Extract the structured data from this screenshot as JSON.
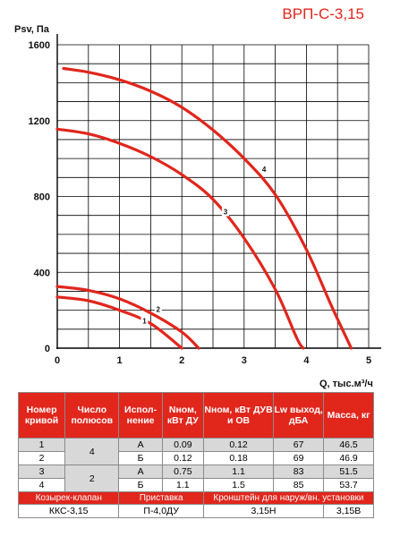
{
  "title": "ВРП-С-3,15",
  "chart_data": {
    "type": "line",
    "ylabel": "Psv, Па",
    "xlabel": "Q, тыс.м³/ч",
    "xlim": [
      0,
      5
    ],
    "ylim": [
      0,
      1600
    ],
    "x_ticks": [
      "0",
      "1",
      "2",
      "3",
      "4",
      "5"
    ],
    "y_ticks": [
      "0",
      "400",
      "800",
      "1200",
      "1600"
    ],
    "grid": true,
    "series": [
      {
        "name": "1",
        "points": [
          [
            0,
            270
          ],
          [
            0.5,
            250
          ],
          [
            1.0,
            200
          ],
          [
            1.5,
            130
          ],
          [
            2.0,
            0
          ]
        ],
        "label_at": [
          1.4,
          145
        ]
      },
      {
        "name": "2",
        "points": [
          [
            0,
            325
          ],
          [
            0.5,
            305
          ],
          [
            1.0,
            260
          ],
          [
            1.5,
            185
          ],
          [
            2.0,
            85
          ],
          [
            2.27,
            0
          ]
        ],
        "label_at": [
          1.62,
          205
        ]
      },
      {
        "name": "3",
        "points": [
          [
            0,
            1155
          ],
          [
            0.5,
            1130
          ],
          [
            1.0,
            1080
          ],
          [
            1.5,
            1010
          ],
          [
            2.0,
            915
          ],
          [
            2.5,
            785
          ],
          [
            3.0,
            580
          ],
          [
            3.5,
            310
          ],
          [
            3.85,
            50
          ],
          [
            3.95,
            0
          ]
        ],
        "label_at": [
          2.7,
          720
        ]
      },
      {
        "name": "4",
        "points": [
          [
            0.1,
            1475
          ],
          [
            0.5,
            1455
          ],
          [
            1.0,
            1415
          ],
          [
            1.5,
            1355
          ],
          [
            2.0,
            1270
          ],
          [
            2.5,
            1150
          ],
          [
            3.0,
            1000
          ],
          [
            3.5,
            810
          ],
          [
            4.0,
            520
          ],
          [
            4.4,
            225
          ],
          [
            4.72,
            0
          ]
        ],
        "label_at": [
          3.32,
          945
        ]
      }
    ],
    "color": "#e1261c"
  },
  "table": {
    "headers": [
      "Номер кривой",
      "Число полюсов",
      "Испол-нение",
      "Nном, кВт ДУ",
      "Nном, кВт ДУВ и ОВ",
      "Lw выход, дБА",
      "Масса, кг"
    ],
    "rows": [
      {
        "curve": "1",
        "poles": "4",
        "version": "А",
        "n_du": "0.09",
        "n_duv": "0.12",
        "lw": "67",
        "mass": "46.5"
      },
      {
        "curve": "2",
        "poles": "",
        "version": "Б",
        "n_du": "0.12",
        "n_duv": "0.18",
        "lw": "69",
        "mass": "46.9"
      },
      {
        "curve": "3",
        "poles": "2",
        "version": "А",
        "n_du": "0.75",
        "n_duv": "1.1",
        "lw": "83",
        "mass": "51.5"
      },
      {
        "curve": "4",
        "poles": "",
        "version": "Б",
        "n_du": "1.1",
        "n_duv": "1.5",
        "lw": "85",
        "mass": "53.7"
      }
    ],
    "accessories": {
      "labels": [
        "Козырек-клапан",
        "Приставка",
        "Кронштейн для наруж/вн. установки"
      ],
      "values": [
        "ККС-3,15",
        "П-4,0ДУ",
        "3,15Н",
        "3,15В"
      ]
    }
  }
}
